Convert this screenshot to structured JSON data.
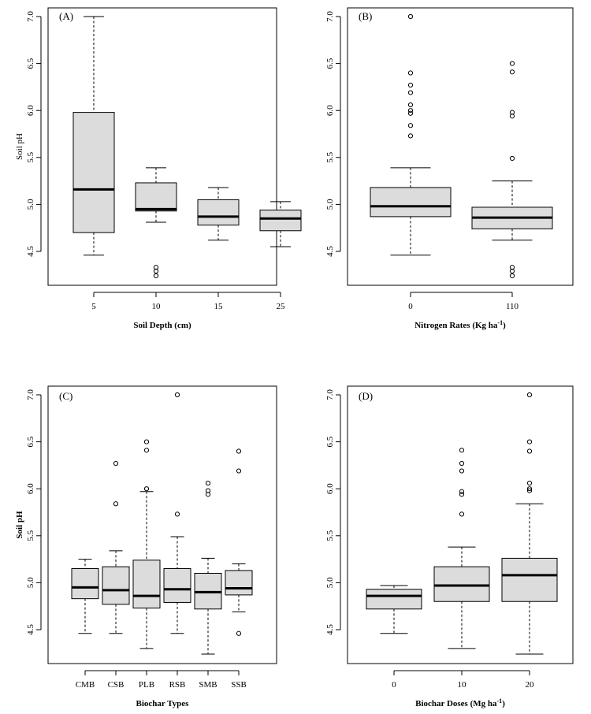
{
  "chart_data": [
    {
      "type": "boxplot",
      "panel_label": "(A)",
      "xlabel": "Soil Depth (cm)",
      "ylabel": "Soil pH",
      "ylabel_bold": false,
      "ylim": [
        4.0,
        7.05
      ],
      "yticks": [
        "4.5",
        "5.0",
        "5.5",
        "6.0",
        "6.5",
        "7.0"
      ],
      "categories": [
        "5",
        "10",
        "15",
        "25"
      ],
      "boxes": [
        {
          "q1": 4.7,
          "median": 5.16,
          "q3": 5.98,
          "whisker_low": 4.46,
          "whisker_high": 7.0,
          "outliers": []
        },
        {
          "q1": 4.93,
          "median": 4.95,
          "q3": 5.23,
          "whisker_low": 4.81,
          "whisker_high": 5.39,
          "outliers": [
            4.24,
            4.29,
            4.33
          ]
        },
        {
          "q1": 4.78,
          "median": 4.87,
          "q3": 5.05,
          "whisker_low": 4.62,
          "whisker_high": 5.18,
          "outliers": []
        },
        {
          "q1": 4.72,
          "median": 4.85,
          "q3": 4.94,
          "whisker_low": 4.55,
          "whisker_high": 5.03,
          "outliers": []
        }
      ]
    },
    {
      "type": "boxplot",
      "panel_label": "(B)",
      "xlabel": "Nitrogen Rates (Kg ha",
      "xlabel_sup": "-1",
      "xlabel_end": ")",
      "ylabel": "",
      "ylabel_bold": false,
      "ylim": [
        4.0,
        7.05
      ],
      "yticks": [
        "4.5",
        "5.0",
        "5.5",
        "6.0",
        "6.5",
        "7.0"
      ],
      "categories": [
        "0",
        "110"
      ],
      "boxes": [
        {
          "q1": 4.87,
          "median": 4.98,
          "q3": 5.18,
          "whisker_low": 4.46,
          "whisker_high": 5.39,
          "outliers": [
            5.73,
            5.84,
            5.97,
            6.0,
            6.06,
            6.19,
            6.27,
            6.4,
            7.0
          ]
        },
        {
          "q1": 4.74,
          "median": 4.86,
          "q3": 4.97,
          "whisker_low": 4.62,
          "whisker_high": 5.25,
          "outliers": [
            4.24,
            4.29,
            4.33,
            5.49,
            5.94,
            5.98,
            6.41,
            6.5
          ]
        }
      ]
    },
    {
      "type": "boxplot",
      "panel_label": "(C)",
      "xlabel": "Biochar Types",
      "ylabel": "Soil pH",
      "ylabel_bold": true,
      "ylim": [
        4.0,
        7.05
      ],
      "yticks": [
        "4.5",
        "5.0",
        "5.5",
        "6.0",
        "6.5",
        "7.0"
      ],
      "categories": [
        "CMB",
        "CSB",
        "PLB",
        "RSB",
        "SMB",
        "SSB"
      ],
      "boxes": [
        {
          "q1": 4.83,
          "median": 4.95,
          "q3": 5.15,
          "whisker_low": 4.46,
          "whisker_high": 5.25,
          "outliers": []
        },
        {
          "q1": 4.77,
          "median": 4.92,
          "q3": 5.17,
          "whisker_low": 4.46,
          "whisker_high": 5.34,
          "outliers": [
            5.84,
            6.27
          ]
        },
        {
          "q1": 4.73,
          "median": 4.86,
          "q3": 5.24,
          "whisker_low": 4.3,
          "whisker_high": 5.97,
          "outliers": [
            6.0,
            6.41,
            6.5
          ]
        },
        {
          "q1": 4.79,
          "median": 4.93,
          "q3": 5.15,
          "whisker_low": 4.46,
          "whisker_high": 5.49,
          "outliers": [
            5.73,
            7.0
          ]
        },
        {
          "q1": 4.72,
          "median": 4.9,
          "q3": 5.1,
          "whisker_low": 4.24,
          "whisker_high": 5.26,
          "outliers": [
            5.94,
            5.98,
            6.06
          ]
        },
        {
          "q1": 4.87,
          "median": 4.94,
          "q3": 5.13,
          "whisker_low": 4.69,
          "whisker_high": 5.2,
          "outliers": [
            4.46,
            6.19,
            6.4
          ]
        }
      ]
    },
    {
      "type": "boxplot",
      "panel_label": "(D)",
      "xlabel": "Biochar Doses (Mg ha",
      "xlabel_sup": "-1",
      "xlabel_end": ")",
      "ylabel": "",
      "ylabel_bold": false,
      "ylim": [
        4.0,
        7.05
      ],
      "yticks": [
        "4.5",
        "5.0",
        "5.5",
        "6.0",
        "6.5",
        "7.0"
      ],
      "categories": [
        "0",
        "10",
        "20"
      ],
      "boxes": [
        {
          "q1": 4.72,
          "median": 4.86,
          "q3": 4.93,
          "whisker_low": 4.46,
          "whisker_high": 4.97,
          "outliers": []
        },
        {
          "q1": 4.8,
          "median": 4.97,
          "q3": 5.17,
          "whisker_low": 4.3,
          "whisker_high": 5.38,
          "outliers": [
            5.73,
            5.94,
            5.97,
            6.19,
            6.27,
            6.41
          ]
        },
        {
          "q1": 4.8,
          "median": 5.08,
          "q3": 5.26,
          "whisker_low": 4.24,
          "whisker_high": 5.84,
          "outliers": [
            5.98,
            6.0,
            6.06,
            6.4,
            6.5,
            7.0
          ]
        }
      ]
    }
  ]
}
